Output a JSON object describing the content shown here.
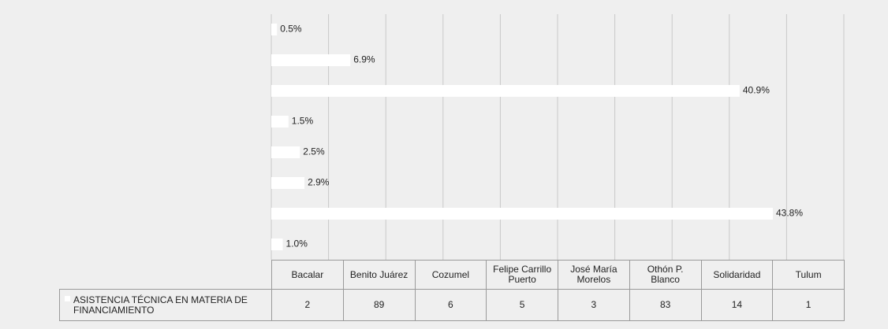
{
  "chart_data": {
    "type": "bar",
    "orientation": "horizontal",
    "categories": [
      "Bacalar",
      "Benito Juárez",
      "Cozumel",
      "Felipe Carrillo Puerto",
      "José María Morelos",
      "Othón P. Blanco",
      "Solidaridad",
      "Tulum"
    ],
    "values": [
      1.0,
      43.8,
      2.9,
      2.5,
      1.5,
      40.9,
      6.9,
      0.5
    ],
    "value_labels": [
      "1.0%",
      "43.8%",
      "2.9%",
      "2.5%",
      "1.5%",
      "40.9%",
      "6.9%",
      "0.5%"
    ],
    "color": "#ffffff",
    "xlim": [
      0,
      50
    ],
    "xticks": [
      0,
      5,
      10,
      15,
      20,
      25,
      30,
      35,
      40,
      45,
      50
    ],
    "grid": true,
    "data_table": {
      "series_name": "ASISTENCIA TÉCNICA EN MATERIA DE FINANCIAMIENTO",
      "values": [
        2,
        89,
        6,
        5,
        3,
        83,
        14,
        1
      ]
    }
  }
}
